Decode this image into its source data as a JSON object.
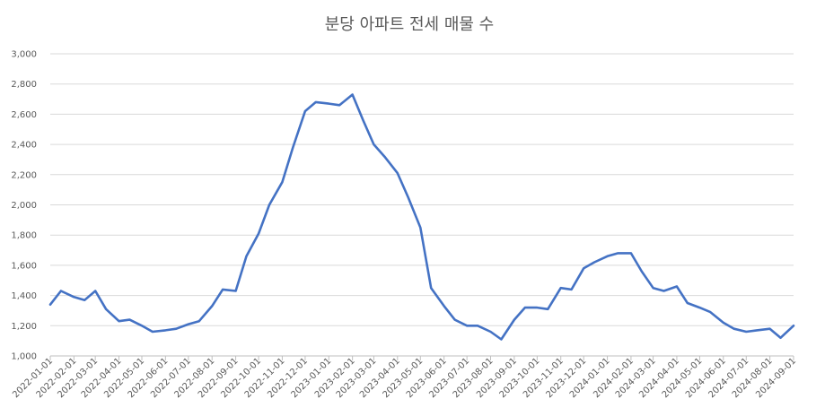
{
  "chart_data": {
    "type": "line",
    "title": "분당 아파트 전세 매물 수",
    "xlabel": "",
    "ylabel": "",
    "ylim": [
      1000,
      3000
    ],
    "y_ticks": [
      "1,000",
      "1,200",
      "1,400",
      "1,600",
      "1,800",
      "2,000",
      "2,200",
      "2,400",
      "2,600",
      "2,800",
      "3,000"
    ],
    "x_ticks": [
      "2022-01-01",
      "2022-02-01",
      "2022-03-01",
      "2022-04-01",
      "2022-05-01",
      "2022-06-01",
      "2022-07-01",
      "2022-08-01",
      "2022-09-01",
      "2022-10-01",
      "2022-11-01",
      "2022-12-01",
      "2023-01-01",
      "2023-02-01",
      "2023-03-01",
      "2023-04-01",
      "2023-05-01",
      "2023-06-01",
      "2023-07-01",
      "2023-08-01",
      "2023-09-01",
      "2023-10-01",
      "2023-11-01",
      "2023-12-01",
      "2024-01-01",
      "2024-02-01",
      "2024-03-01",
      "2024-04-01",
      "2024-05-01",
      "2024-06-01",
      "2024-07-01",
      "2024-08-01",
      "2024-09-01"
    ],
    "grid": true,
    "line_color": "#4472C4",
    "series": [
      {
        "x": [
          "2022-01-01",
          "2022-01-15",
          "2022-02-01",
          "2022-02-15",
          "2022-03-01",
          "2022-03-15",
          "2022-04-01",
          "2022-04-15",
          "2022-05-01",
          "2022-05-15",
          "2022-06-01",
          "2022-06-15",
          "2022-07-01",
          "2022-07-15",
          "2022-08-01",
          "2022-08-15",
          "2022-09-01",
          "2022-09-15",
          "2022-10-01",
          "2022-10-15",
          "2022-11-01",
          "2022-11-15",
          "2022-12-01",
          "2022-12-15",
          "2023-01-01",
          "2023-01-15",
          "2023-02-01",
          "2023-02-15",
          "2023-03-01",
          "2023-03-15",
          "2023-04-01",
          "2023-04-15",
          "2023-05-01",
          "2023-05-15",
          "2023-06-01",
          "2023-06-15",
          "2023-07-01",
          "2023-07-15",
          "2023-08-01",
          "2023-08-15",
          "2023-09-01",
          "2023-09-15",
          "2023-10-01",
          "2023-10-15",
          "2023-11-01",
          "2023-11-15",
          "2023-12-01",
          "2023-12-15",
          "2024-01-01",
          "2024-01-15",
          "2024-02-01",
          "2024-02-15",
          "2024-03-01",
          "2024-03-15",
          "2024-04-01",
          "2024-04-15",
          "2024-05-01",
          "2024-05-15",
          "2024-06-01",
          "2024-06-15",
          "2024-07-01",
          "2024-07-15",
          "2024-08-01",
          "2024-08-15",
          "2024-09-01"
        ],
        "values": [
          1340,
          1430,
          1390,
          1370,
          1430,
          1310,
          1230,
          1240,
          1200,
          1160,
          1170,
          1180,
          1210,
          1230,
          1330,
          1440,
          1430,
          1660,
          1810,
          2000,
          2150,
          2380,
          2620,
          2680,
          2670,
          2660,
          2730,
          2560,
          2400,
          2320,
          2210,
          2050,
          1850,
          1450,
          1330,
          1240,
          1200,
          1200,
          1160,
          1110,
          1240,
          1320,
          1320,
          1310,
          1450,
          1440,
          1580,
          1620,
          1660,
          1680,
          1680,
          1560,
          1450,
          1430,
          1460,
          1350,
          1320,
          1290,
          1220,
          1180,
          1160,
          1170,
          1180,
          1120,
          1200
        ]
      }
    ]
  }
}
